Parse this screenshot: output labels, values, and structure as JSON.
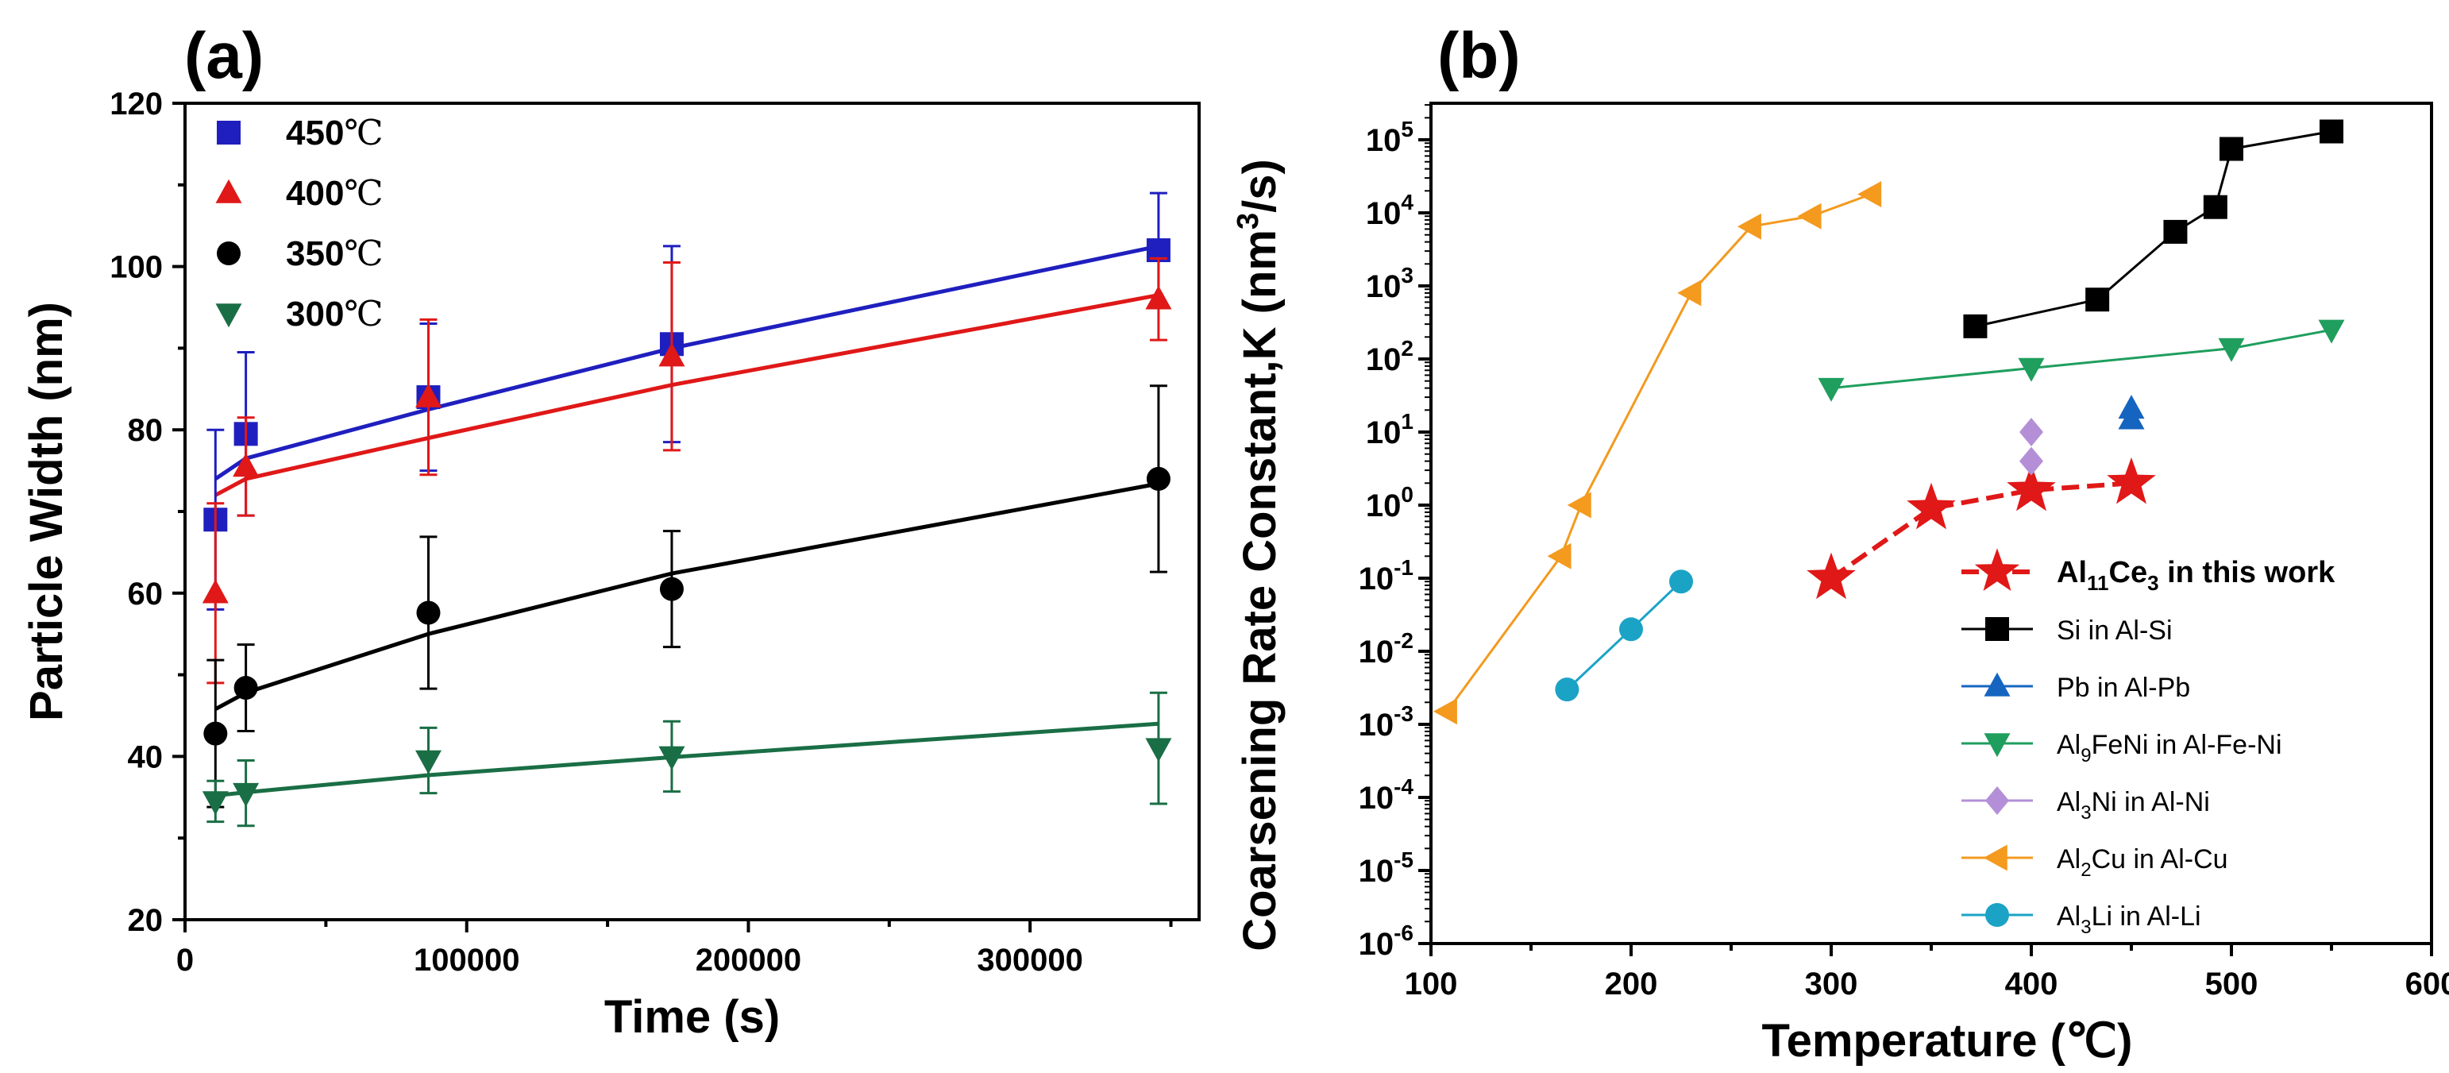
{
  "chart_data": [
    {
      "type": "scatter",
      "panel_label": "(a)",
      "xlabel": "Time (s)",
      "ylabel": "Particle Width (nm)",
      "xlim": [
        0,
        360000
      ],
      "ylim": [
        20,
        120
      ],
      "xticks": [
        0,
        100000,
        200000,
        300000
      ],
      "xtick_labels": [
        "0",
        "100000",
        "200000",
        "300000"
      ],
      "yticks": [
        20,
        40,
        60,
        80,
        100,
        120
      ],
      "ytick_labels": [
        "20",
        "40",
        "60",
        "80",
        "100",
        "120"
      ],
      "legend_position": "top-left",
      "series": [
        {
          "name": "450℃",
          "label_value": "450",
          "label_unit": "℃",
          "color": "#1f1fbf",
          "marker": "square",
          "x": [
            10800,
            21600,
            86400,
            172800,
            345600
          ],
          "y": [
            69,
            79.5,
            84,
            90.5,
            102
          ],
          "yerr": [
            11,
            10,
            9,
            12,
            7
          ],
          "fit": [
            74,
            76.5,
            82.5,
            90,
            102.5
          ]
        },
        {
          "name": "400℃",
          "label_value": "400",
          "label_unit": "℃",
          "color": "#e01818",
          "marker": "triangle-up",
          "x": [
            10800,
            21600,
            86400,
            172800,
            345600
          ],
          "y": [
            60,
            75.5,
            84,
            89,
            96
          ],
          "yerr": [
            11,
            6,
            9.5,
            11.5,
            5
          ],
          "fit": [
            72,
            74,
            79,
            85.5,
            96.5
          ]
        },
        {
          "name": "350℃",
          "label_value": "350",
          "label_unit": "℃",
          "color": "#000000",
          "marker": "circle",
          "x": [
            10800,
            21600,
            86400,
            172800,
            345600
          ],
          "y": [
            42.8,
            48.4,
            57.6,
            60.5,
            74
          ],
          "yerr": [
            9,
            5.3,
            9.3,
            7.1,
            11.4
          ],
          "fit": [
            45.8,
            47.8,
            55,
            62.4,
            73.4
          ]
        },
        {
          "name": "300℃",
          "label_value": "300",
          "label_unit": "℃",
          "color": "#1a6e45",
          "marker": "triangle-down",
          "x": [
            10800,
            21600,
            86400,
            172800,
            345600
          ],
          "y": [
            34.5,
            35.5,
            39.5,
            40,
            41
          ],
          "yerr": [
            2.5,
            4,
            4,
            4.3,
            6.8
          ],
          "fit": [
            35.2,
            35.6,
            37.7,
            39.9,
            44
          ]
        }
      ]
    },
    {
      "type": "scatter",
      "panel_label": "(b)",
      "xlabel": "Temperature (℃)",
      "ylabel_prefix": "Coarsening Rate Constant,K (nm",
      "ylabel_sup": "3",
      "ylabel_suffix": "/s)",
      "xlim": [
        100,
        600
      ],
      "ylim_log10": [
        -6,
        5.5
      ],
      "xticks": [
        100,
        200,
        300,
        400,
        500,
        600
      ],
      "xtick_labels": [
        "100",
        "200",
        "300",
        "400",
        "500",
        "600"
      ],
      "ytick_exponents": [
        -6,
        -5,
        -4,
        -3,
        -2,
        -1,
        0,
        1,
        2,
        3,
        4,
        5
      ],
      "ytick_base": "10",
      "yscale": "log",
      "legend_position": "bottom-right",
      "series": [
        {
          "name": "Al11Ce3 in this work",
          "label_parts": [
            [
              "Al",
              "n"
            ],
            [
              "11",
              "sub"
            ],
            [
              "Ce",
              "n"
            ],
            [
              "3",
              "sub"
            ],
            [
              "  in this work",
              "n"
            ]
          ],
          "color": "#e01818",
          "marker": "star",
          "dashed": true,
          "bold_label": true,
          "x": [
            300,
            350,
            400,
            450
          ],
          "y": [
            0.1,
            0.9,
            1.6,
            2.0
          ]
        },
        {
          "name": "Si in Al-Si",
          "label_parts": [
            [
              "Si in Al-Si",
              "n"
            ]
          ],
          "color": "#000000",
          "marker": "square",
          "x": [
            372,
            433,
            472,
            492,
            500,
            550
          ],
          "y": [
            280,
            650,
            5500,
            12000,
            75000,
            130000
          ]
        },
        {
          "name": "Pb in Al-Pb",
          "label_parts": [
            [
              "Pb in Al-Pb",
              "n"
            ]
          ],
          "color": "#1565c0",
          "marker": "triangle-up",
          "x": [
            450,
            450
          ],
          "y": [
            15,
            21
          ]
        },
        {
          "name": "Al9FeNi in Al-Fe-Ni",
          "label_parts": [
            [
              "Al",
              "n"
            ],
            [
              "9",
              "sub"
            ],
            [
              "FeNi in Al-Fe-Ni",
              "n"
            ]
          ],
          "color": "#1f9e5e",
          "marker": "triangle-down",
          "x": [
            300,
            400,
            500,
            550
          ],
          "y": [
            40,
            75,
            140,
            250
          ]
        },
        {
          "name": "Al3Ni in Al-Ni",
          "label_parts": [
            [
              "Al",
              "n"
            ],
            [
              "3",
              "sub"
            ],
            [
              "Ni in Al-Ni",
              "n"
            ]
          ],
          "color": "#b48fd8",
          "marker": "diamond",
          "x": [
            400,
            400
          ],
          "y": [
            4,
            10
          ]
        },
        {
          "name": "Al2Cu in Al-Cu",
          "label_parts": [
            [
              "Al",
              "n"
            ],
            [
              "2",
              "sub"
            ],
            [
              "Cu in Al-Cu",
              "n"
            ]
          ],
          "color": "#f39a1f",
          "marker": "triangle-left",
          "x": [
            108,
            165,
            175,
            230,
            260,
            290,
            320
          ],
          "y": [
            0.0015,
            0.2,
            1.0,
            800,
            6500,
            9000,
            18000
          ]
        },
        {
          "name": "Al3Li in Al-Li",
          "label_parts": [
            [
              "Al",
              "n"
            ],
            [
              "3",
              "sub"
            ],
            [
              "Li in Al-Li",
              "n"
            ]
          ],
          "color": "#1ba3c6",
          "marker": "circle",
          "x": [
            168,
            200,
            225
          ],
          "y": [
            0.003,
            0.02,
            0.09
          ]
        }
      ]
    }
  ]
}
